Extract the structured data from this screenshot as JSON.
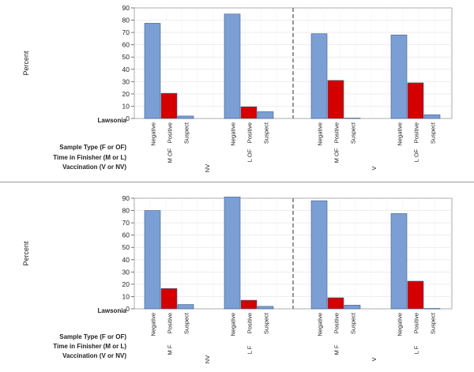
{
  "chart_data": [
    {
      "type": "bar",
      "ylabel": "Percent",
      "ylim": [
        0,
        90
      ],
      "yticks": [
        0,
        10,
        20,
        30,
        40,
        50,
        60,
        70,
        80,
        90
      ],
      "categories": [
        "Negative",
        "Positive",
        "Suspect"
      ],
      "colors": {
        "Negative": "#7b9fd4",
        "Positive": "#d40000",
        "Suspect": "#7b9fd4"
      },
      "row_labels": [
        "Lawsonia",
        "Sample Type (F or OF)",
        "Time in Finisher (M or L)",
        "Vaccination (V or NV)"
      ],
      "groups": [
        {
          "sample_time": "M  OF",
          "vaccination": "NV",
          "values": [
            77.5,
            20.5,
            2.0
          ]
        },
        {
          "sample_time": "L  OF",
          "vaccination": "NV",
          "values": [
            85.0,
            9.5,
            5.5
          ]
        },
        {
          "sample_time": "M  OF",
          "vaccination": "V",
          "values": [
            69.0,
            31.0,
            0.3
          ]
        },
        {
          "sample_time": "L  OF",
          "vaccination": "V",
          "values": [
            68.0,
            29.0,
            3.0
          ]
        }
      ]
    },
    {
      "type": "bar",
      "ylabel": "Percent",
      "ylim": [
        0,
        90
      ],
      "yticks": [
        0,
        10,
        20,
        30,
        40,
        50,
        60,
        70,
        80,
        90
      ],
      "categories": [
        "Negative",
        "Positive",
        "Suspect"
      ],
      "colors": {
        "Negative": "#7b9fd4",
        "Positive": "#d40000",
        "Suspect": "#7b9fd4"
      },
      "row_labels": [
        "Lawsonia",
        "Sample Type (F or OF)",
        "Time in Finisher (M or L)",
        "Vaccination (V or NV)"
      ],
      "groups": [
        {
          "sample_time": "M  F",
          "vaccination": "NV",
          "values": [
            80.0,
            16.5,
            3.5
          ]
        },
        {
          "sample_time": "L  F",
          "vaccination": "NV",
          "values": [
            91.0,
            7.0,
            2.0
          ]
        },
        {
          "sample_time": "M  F",
          "vaccination": "V",
          "values": [
            88.0,
            9.0,
            3.0
          ]
        },
        {
          "sample_time": "L  F",
          "vaccination": "V",
          "values": [
            77.5,
            22.5,
            0.3
          ]
        }
      ]
    }
  ]
}
